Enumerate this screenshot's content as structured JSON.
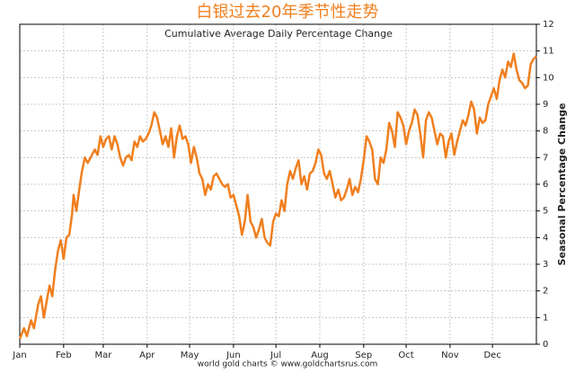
{
  "chart_data": {
    "type": "line",
    "title": "白银过去20年季节性走势",
    "subtitle": "Cumulative Average Daily Percentage Change",
    "y_axis_label": "Seasonal Percentage Change",
    "footer": "world gold charts © www.goldchartsrus.com",
    "x": [
      0,
      3,
      5,
      8,
      10,
      13,
      15,
      17,
      19,
      21,
      23,
      25,
      27,
      29,
      31,
      33,
      35,
      37,
      38,
      40,
      42,
      44,
      46,
      48,
      50,
      53,
      55,
      57,
      59,
      61,
      63,
      65,
      67,
      69,
      71,
      73,
      75,
      77,
      79,
      81,
      83,
      85,
      87,
      89,
      91,
      93,
      95,
      97,
      99,
      101,
      103,
      105,
      107,
      109,
      111,
      113,
      115,
      117,
      119,
      121,
      123,
      125,
      127,
      129,
      131,
      133,
      135,
      137,
      139,
      141,
      143,
      145,
      147,
      149,
      151,
      153,
      155,
      157,
      159,
      161,
      163,
      165,
      167,
      169,
      171,
      173,
      175,
      177,
      179,
      181,
      183,
      185,
      187,
      189,
      191,
      193,
      195,
      197,
      199,
      201,
      203,
      205,
      207,
      209,
      211,
      213,
      215,
      217,
      219,
      221,
      223,
      225,
      227,
      229,
      231,
      233,
      235,
      237,
      239,
      241,
      243,
      245,
      247,
      249,
      251,
      253,
      255,
      257,
      259,
      261,
      263,
      265,
      267,
      269,
      271,
      273,
      275,
      277,
      279,
      281,
      283,
      285,
      287,
      289,
      291,
      293,
      295,
      297,
      299,
      301,
      303,
      305,
      307,
      309,
      311,
      313,
      315,
      317,
      319,
      321,
      323,
      325,
      327,
      329,
      331,
      333,
      335,
      337,
      339,
      341,
      343,
      345,
      347,
      349,
      351,
      353,
      355,
      357,
      359,
      361,
      363,
      365
    ],
    "series": [
      {
        "name": "Silver",
        "color": "#f07f1e",
        "values": [
          0.2,
          0.6,
          0.3,
          0.9,
          0.6,
          1.5,
          1.8,
          1.0,
          1.6,
          2.2,
          1.8,
          2.8,
          3.5,
          3.9,
          3.2,
          4.0,
          4.1,
          4.9,
          5.6,
          5.0,
          5.8,
          6.5,
          7.0,
          6.8,
          7.0,
          7.3,
          7.1,
          7.8,
          7.4,
          7.7,
          7.8,
          7.3,
          7.8,
          7.5,
          7.0,
          6.7,
          7.0,
          7.1,
          6.9,
          7.6,
          7.4,
          7.8,
          7.6,
          7.7,
          7.9,
          8.2,
          8.7,
          8.5,
          8.0,
          7.5,
          7.8,
          7.4,
          8.1,
          7.0,
          7.8,
          8.2,
          7.7,
          7.8,
          7.5,
          6.8,
          7.4,
          7.0,
          6.4,
          6.2,
          5.6,
          6.0,
          5.8,
          6.3,
          6.4,
          6.2,
          6.0,
          5.9,
          6.0,
          5.5,
          5.6,
          5.2,
          4.8,
          4.1,
          4.6,
          5.6,
          4.6,
          4.4,
          4.0,
          4.3,
          4.7,
          4.0,
          3.8,
          3.7,
          4.6,
          4.9,
          4.8,
          5.4,
          5.0,
          6.0,
          6.5,
          6.2,
          6.6,
          6.9,
          6.0,
          6.3,
          5.8,
          6.4,
          6.5,
          6.8,
          7.3,
          7.1,
          6.4,
          6.2,
          6.5,
          6.0,
          5.5,
          5.8,
          5.4,
          5.5,
          5.8,
          6.2,
          5.6,
          5.9,
          5.7,
          6.2,
          6.9,
          7.8,
          7.6,
          7.3,
          6.2,
          6.0,
          7.0,
          6.8,
          7.3,
          8.3,
          8.0,
          7.4,
          8.7,
          8.5,
          8.2,
          7.5,
          8.0,
          8.3,
          8.8,
          8.6,
          7.9,
          7.0,
          8.4,
          8.7,
          8.5,
          8.0,
          7.5,
          7.9,
          7.8,
          7.0,
          7.6,
          7.9,
          7.1,
          7.6,
          8.0,
          8.4,
          8.2,
          8.6,
          9.1,
          8.8,
          7.9,
          8.5,
          8.3,
          8.4,
          9.0,
          9.3,
          9.6,
          9.2,
          9.9,
          10.3,
          10.0,
          10.6,
          10.4,
          10.9,
          10.3,
          9.9,
          9.8,
          9.6,
          9.7,
          10.5,
          10.7,
          10.8
        ]
      }
    ],
    "xlim": [
      0,
      365
    ],
    "xticks": [
      {
        "value": 0,
        "label": "Jan"
      },
      {
        "value": 31,
        "label": "Feb"
      },
      {
        "value": 59,
        "label": "Mar"
      },
      {
        "value": 90,
        "label": "Apr"
      },
      {
        "value": 120,
        "label": "May"
      },
      {
        "value": 151,
        "label": "Jun"
      },
      {
        "value": 181,
        "label": "Jul"
      },
      {
        "value": 212,
        "label": "Aug"
      },
      {
        "value": 243,
        "label": "Sep"
      },
      {
        "value": 273,
        "label": "Oct"
      },
      {
        "value": 304,
        "label": "Nov"
      },
      {
        "value": 334,
        "label": "Dec"
      }
    ],
    "ylim": [
      0,
      12
    ],
    "yticks": [
      0,
      1,
      2,
      3,
      4,
      5,
      6,
      7,
      8,
      9,
      10,
      11,
      12
    ],
    "grid": true
  }
}
